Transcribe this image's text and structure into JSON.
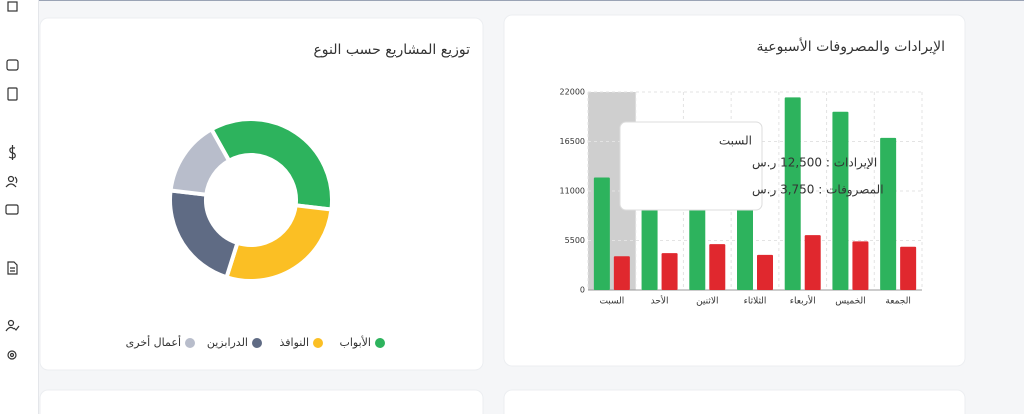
{
  "chart_data": [
    {
      "type": "bar",
      "title": "الإيرادات والمصروفات الأسبوعية",
      "categories": [
        "السبت",
        "الأحد",
        "الاثنين",
        "الثلاثاء",
        "الأربعاء",
        "الخميس",
        "الجمعة"
      ],
      "series": [
        {
          "name": "الإيرادات",
          "color": "#2db35d",
          "values": [
            12500,
            15000,
            18700,
            16000,
            21400,
            19800,
            16900
          ]
        },
        {
          "name": "المصروفات",
          "color": "#e0282e",
          "values": [
            3750,
            4100,
            5100,
            3900,
            6100,
            5400,
            4800
          ]
        }
      ],
      "ylim": [
        0,
        22000
      ],
      "yticks": [
        0,
        5500,
        11000,
        16500,
        22000
      ],
      "grid": true,
      "tooltip": {
        "title": "السبت",
        "lines": [
          "الإيرادات : 12,500 ر.س",
          "المصروفات : 3,750 ر.س"
        ]
      }
    },
    {
      "type": "donut",
      "title": "توزيع المشاريع حسب النوع",
      "categories": [
        "الأبواب",
        "النوافذ",
        "الدرابزين",
        "أعمال أخرى"
      ],
      "values": [
        35,
        28,
        22,
        15
      ],
      "colors": [
        "#2db35d",
        "#fbbf24",
        "#5f6b84",
        "#b8bdcb"
      ],
      "legend": "bottom"
    }
  ]
}
